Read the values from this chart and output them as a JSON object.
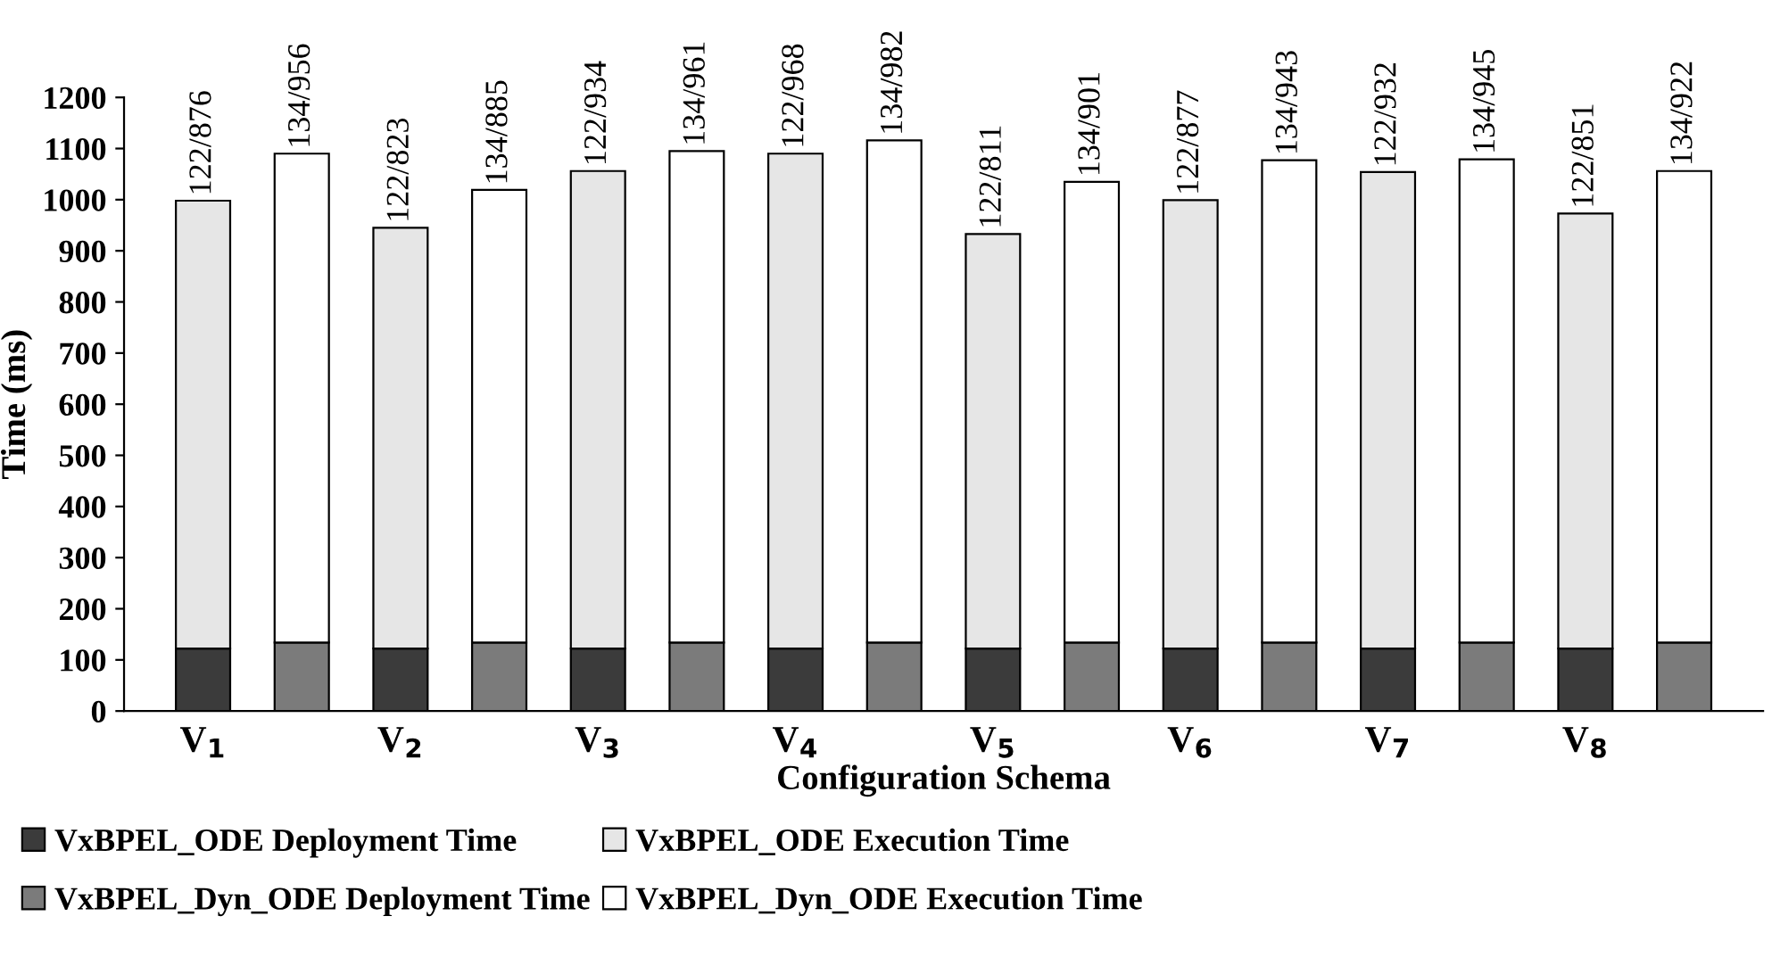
{
  "chart_data": {
    "type": "bar",
    "stacked": true,
    "xlabel": "Configuration Schema",
    "ylabel": "Time (ms)",
    "categories": [
      "V$_{1}$",
      null,
      "V$_{2}$",
      null,
      "V$_{3}$",
      null,
      "V$_{4}$",
      null,
      "V$_{5}$",
      null,
      "V$_{6}$",
      null,
      "V$_{7}$",
      null,
      "V$_{8}$",
      null
    ],
    "series": [
      {
        "name": "VxBPEL_ODE Deployment Time",
        "color": "#3b3b3b",
        "values": [
          122,
          null,
          122,
          null,
          122,
          null,
          122,
          null,
          122,
          null,
          122,
          null,
          122,
          null,
          122,
          null
        ]
      },
      {
        "name": "VxBPEL_ODE Execution Time",
        "color": "#e6e6e6",
        "values": [
          876,
          null,
          823,
          null,
          934,
          null,
          968,
          null,
          811,
          null,
          877,
          null,
          932,
          null,
          851,
          null
        ],
        "value_labels": [
          "122/876",
          null,
          "122/823",
          null,
          "122/934",
          null,
          "122/968",
          null,
          "122/811",
          null,
          "122/877",
          null,
          "122/932",
          null,
          "122/851",
          null
        ]
      },
      {
        "name": "VxBPEL_Dyn_ODE Deployment Time",
        "color": "#7b7b7b",
        "values": [
          null,
          134,
          null,
          134,
          null,
          134,
          null,
          134,
          null,
          134,
          null,
          134,
          null,
          134,
          null,
          134
        ]
      },
      {
        "name": "VxBPEL_Dyn_ODE Execution Time",
        "color": "#ffffff",
        "values": [
          null,
          956,
          null,
          885,
          null,
          961,
          null,
          982,
          null,
          901,
          null,
          943,
          null,
          945,
          null,
          922
        ],
        "value_labels": [
          null,
          "134/956",
          null,
          "134/885",
          null,
          "134/961",
          null,
          "134/982",
          null,
          "134/901",
          null,
          "134/943",
          null,
          "134/945",
          null,
          "134/922"
        ]
      }
    ],
    "ylim": [
      0,
      1200
    ],
    "yticks": [
      0,
      100,
      200,
      300,
      400,
      500,
      600,
      700,
      800,
      900,
      1000,
      1100,
      1200
    ],
    "grid": false,
    "legend": "bottom"
  }
}
